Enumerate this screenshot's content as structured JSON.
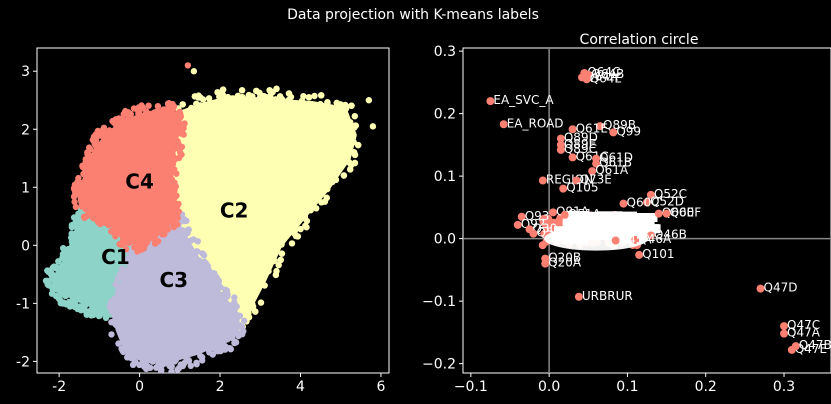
{
  "figure": {
    "suptitle": "Data projection with K-means labels",
    "background": "#000000"
  },
  "chart_data": [
    {
      "type": "scatter",
      "title": "",
      "xlabel": "",
      "ylabel": "",
      "xlim": [
        -2.55,
        6.2
      ],
      "ylim": [
        -2.2,
        3.4
      ],
      "xticks": [
        -2,
        0,
        2,
        4,
        6
      ],
      "yticks": [
        -2,
        -1,
        0,
        1,
        2,
        3
      ],
      "grid": false,
      "clusters": [
        {
          "name": "C1",
          "color": "#8dd3c7",
          "label_at": [
            -0.6,
            -0.2
          ],
          "region": [
            [
              -2.2,
              -0.55
            ],
            [
              -2.1,
              -0.55
            ],
            [
              -1.85,
              -0.35
            ],
            [
              -1.7,
              0.0
            ],
            [
              -1.5,
              0.4
            ],
            [
              -1.1,
              0.62
            ],
            [
              -0.3,
              0.1
            ],
            [
              -0.05,
              0.03
            ],
            [
              -0.5,
              -0.9
            ],
            [
              -0.7,
              -1.05
            ],
            [
              -1.05,
              -1.08
            ],
            [
              -1.5,
              -0.95
            ],
            [
              -1.8,
              -0.85
            ],
            [
              -2.05,
              -0.75
            ]
          ]
        },
        {
          "name": "C2",
          "color": "#ffffb3",
          "label_at": [
            2.35,
            0.6
          ],
          "region": [
            [
              0.85,
              2.25
            ],
            [
              1.7,
              2.45
            ],
            [
              2.3,
              2.55
            ],
            [
              3.2,
              2.5
            ],
            [
              4.3,
              2.45
            ],
            [
              5.1,
              2.35
            ],
            [
              5.35,
              1.9
            ],
            [
              5.2,
              1.5
            ],
            [
              4.7,
              1.0
            ],
            [
              4.1,
              0.5
            ],
            [
              3.5,
              0.0
            ],
            [
              3.1,
              -0.6
            ],
            [
              2.65,
              -1.2
            ],
            [
              2.2,
              -1.5
            ],
            [
              1.8,
              -1.45
            ],
            [
              1.6,
              -0.4
            ],
            [
              1.0,
              0.3
            ],
            [
              0.6,
              0.45
            ]
          ]
        },
        {
          "name": "C3",
          "color": "#bebada",
          "label_at": [
            0.85,
            -0.6
          ],
          "region": [
            [
              -0.05,
              0.03
            ],
            [
              0.85,
              0.48
            ],
            [
              1.55,
              -0.35
            ],
            [
              1.9,
              -0.75
            ],
            [
              2.25,
              -1.05
            ],
            [
              2.45,
              -1.5
            ],
            [
              2.1,
              -1.65
            ],
            [
              1.45,
              -1.85
            ],
            [
              0.8,
              -1.98
            ],
            [
              0.0,
              -1.95
            ],
            [
              -0.35,
              -1.8
            ],
            [
              -0.55,
              -1.45
            ],
            [
              -0.6,
              -1.05
            ]
          ]
        },
        {
          "name": "C4",
          "color": "#fb8072",
          "label_at": [
            0.0,
            1.1
          ],
          "region": [
            [
              -1.45,
              0.65
            ],
            [
              -1.5,
              0.85
            ],
            [
              -1.3,
              1.3
            ],
            [
              -1.1,
              1.65
            ],
            [
              -0.75,
              1.95
            ],
            [
              -0.3,
              2.15
            ],
            [
              0.2,
              2.28
            ],
            [
              0.75,
              2.3
            ],
            [
              1.0,
              2.1
            ],
            [
              0.85,
              1.65
            ],
            [
              0.75,
              0.95
            ],
            [
              0.85,
              0.48
            ],
            [
              -0.05,
              0.03
            ],
            [
              -0.3,
              0.1
            ],
            [
              -1.1,
              0.62
            ]
          ]
        }
      ],
      "outliers": [
        {
          "x": 1.2,
          "y": 3.1,
          "cluster": "C4"
        },
        {
          "x": 1.35,
          "y": 3.0,
          "cluster": "C2"
        },
        {
          "x": 5.7,
          "y": 2.5,
          "cluster": "C2"
        },
        {
          "x": 5.8,
          "y": 2.05,
          "cluster": "C2"
        },
        {
          "x": -2.2,
          "y": -0.5,
          "cluster": "C1"
        },
        {
          "x": -1.15,
          "y": -1.2,
          "cluster": "C1"
        },
        {
          "x": 2.5,
          "y": -1.4,
          "cluster": "C3"
        },
        {
          "x": 2.6,
          "y": -1.3,
          "cluster": "C3"
        }
      ]
    },
    {
      "type": "scatter",
      "title": "Correlation circle",
      "xlabel": "",
      "ylabel": "",
      "xlim": [
        -0.11,
        0.36
      ],
      "ylim": [
        -0.215,
        0.305
      ],
      "xticks": [
        -0.1,
        0.0,
        0.1,
        0.2,
        0.3
      ],
      "xtick_labels": [
        "−0.1",
        "0.0",
        "0.1",
        "0.2",
        "0.3"
      ],
      "yticks": [
        -0.2,
        -0.1,
        0.0,
        0.1,
        0.2,
        0.3
      ],
      "ytick_labels": [
        "−0.2",
        "−0.1",
        "0.0",
        "0.1",
        "0.2",
        "0.3"
      ],
      "reference_lines": {
        "x": 0.0,
        "y": 0.0,
        "color": "#888888"
      },
      "point_color": "#fb8072",
      "cloud_center": [
        0.06,
        0.0
      ],
      "points": [
        {
          "x": 0.045,
          "y": 0.265,
          "label": "Q64C"
        },
        {
          "x": 0.042,
          "y": 0.258,
          "label": "Q64A"
        },
        {
          "x": 0.05,
          "y": 0.262,
          "label": "Q64B"
        },
        {
          "x": 0.048,
          "y": 0.255,
          "label": "Q64E"
        },
        {
          "x": -0.075,
          "y": 0.22,
          "label": "EA_SVC_A"
        },
        {
          "x": -0.058,
          "y": 0.183,
          "label": "EA_ROAD"
        },
        {
          "x": 0.065,
          "y": 0.18,
          "label": "Q89B"
        },
        {
          "x": 0.03,
          "y": 0.175,
          "label": "Q61E"
        },
        {
          "x": 0.082,
          "y": 0.17,
          "label": "Q99"
        },
        {
          "x": 0.015,
          "y": 0.16,
          "label": "Q89D"
        },
        {
          "x": 0.015,
          "y": 0.15,
          "label": "Q89E"
        },
        {
          "x": 0.015,
          "y": 0.142,
          "label": "Q89C"
        },
        {
          "x": 0.03,
          "y": 0.13,
          "label": "Q61C"
        },
        {
          "x": 0.06,
          "y": 0.128,
          "label": "Q61D"
        },
        {
          "x": 0.06,
          "y": 0.12,
          "label": "Q61B"
        },
        {
          "x": 0.055,
          "y": 0.108,
          "label": "Q61A"
        },
        {
          "x": -0.008,
          "y": 0.093,
          "label": "REGION"
        },
        {
          "x": 0.035,
          "y": 0.093,
          "label": "Q73E"
        },
        {
          "x": 0.018,
          "y": 0.08,
          "label": "Q105"
        },
        {
          "x": 0.13,
          "y": 0.07,
          "label": "Q52C"
        },
        {
          "x": 0.125,
          "y": 0.058,
          "label": "Q52D"
        },
        {
          "x": 0.095,
          "y": 0.056,
          "label": "Q60C"
        },
        {
          "x": 0.14,
          "y": 0.04,
          "label": "Q60E"
        },
        {
          "x": 0.15,
          "y": 0.04,
          "label": "Q60F"
        },
        {
          "x": 0.005,
          "y": 0.042,
          "label": "Q91A"
        },
        {
          "x": 0.02,
          "y": 0.038,
          "label": "Q51A"
        },
        {
          "x": -0.035,
          "y": 0.035,
          "label": "Q93"
        },
        {
          "x": -0.04,
          "y": 0.022,
          "label": "Q92"
        },
        {
          "x": -0.025,
          "y": 0.015,
          "label": "Q30"
        },
        {
          "x": -0.02,
          "y": 0.008,
          "label": "Q54"
        },
        {
          "x": 0.13,
          "y": 0.005,
          "label": "Q46B"
        },
        {
          "x": 0.11,
          "y": -0.002,
          "label": "Q46A"
        },
        {
          "x": 0.085,
          "y": -0.003,
          "label": "Q45A"
        },
        {
          "x": 0.115,
          "y": -0.026,
          "label": "Q101"
        },
        {
          "x": -0.005,
          "y": -0.032,
          "label": "Q20B"
        },
        {
          "x": -0.005,
          "y": -0.04,
          "label": "Q20A"
        },
        {
          "x": 0.038,
          "y": -0.093,
          "label": "URBRUR"
        },
        {
          "x": 0.27,
          "y": -0.08,
          "label": "Q47D"
        },
        {
          "x": 0.3,
          "y": -0.14,
          "label": "Q47C"
        },
        {
          "x": 0.3,
          "y": -0.152,
          "label": "Q47A"
        },
        {
          "x": 0.31,
          "y": -0.178,
          "label": "Q47E"
        },
        {
          "x": 0.315,
          "y": -0.172,
          "label": "Q47B"
        }
      ]
    }
  ]
}
